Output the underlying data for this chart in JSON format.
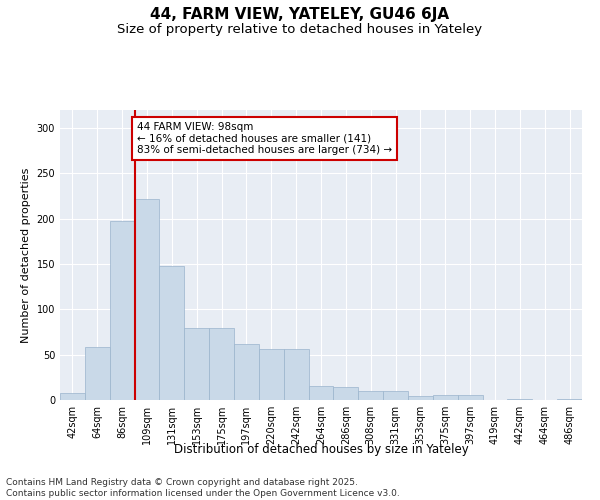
{
  "title": "44, FARM VIEW, YATELEY, GU46 6JA",
  "subtitle": "Size of property relative to detached houses in Yateley",
  "xlabel": "Distribution of detached houses by size in Yateley",
  "ylabel": "Number of detached properties",
  "categories": [
    "42sqm",
    "64sqm",
    "86sqm",
    "109sqm",
    "131sqm",
    "153sqm",
    "175sqm",
    "197sqm",
    "220sqm",
    "242sqm",
    "264sqm",
    "286sqm",
    "308sqm",
    "331sqm",
    "353sqm",
    "375sqm",
    "397sqm",
    "419sqm",
    "442sqm",
    "464sqm",
    "486sqm"
  ],
  "values": [
    8,
    58,
    198,
    222,
    148,
    80,
    80,
    62,
    56,
    56,
    16,
    14,
    10,
    10,
    4,
    6,
    6,
    0,
    1,
    0,
    1
  ],
  "bar_color": "#c9d9e8",
  "bar_edge_color": "#9ab4cc",
  "red_line_x": 2.5,
  "annotation_text": "44 FARM VIEW: 98sqm\n← 16% of detached houses are smaller (141)\n83% of semi-detached houses are larger (734) →",
  "annotation_box_color": "#ffffff",
  "annotation_border_color": "#cc0000",
  "red_line_color": "#cc0000",
  "ylim": [
    0,
    320
  ],
  "yticks": [
    0,
    50,
    100,
    150,
    200,
    250,
    300
  ],
  "background_color": "#e8edf4",
  "footer_text": "Contains HM Land Registry data © Crown copyright and database right 2025.\nContains public sector information licensed under the Open Government Licence v3.0.",
  "title_fontsize": 11,
  "subtitle_fontsize": 9.5,
  "xlabel_fontsize": 8.5,
  "ylabel_fontsize": 8,
  "tick_fontsize": 7,
  "annotation_fontsize": 7.5,
  "footer_fontsize": 6.5
}
